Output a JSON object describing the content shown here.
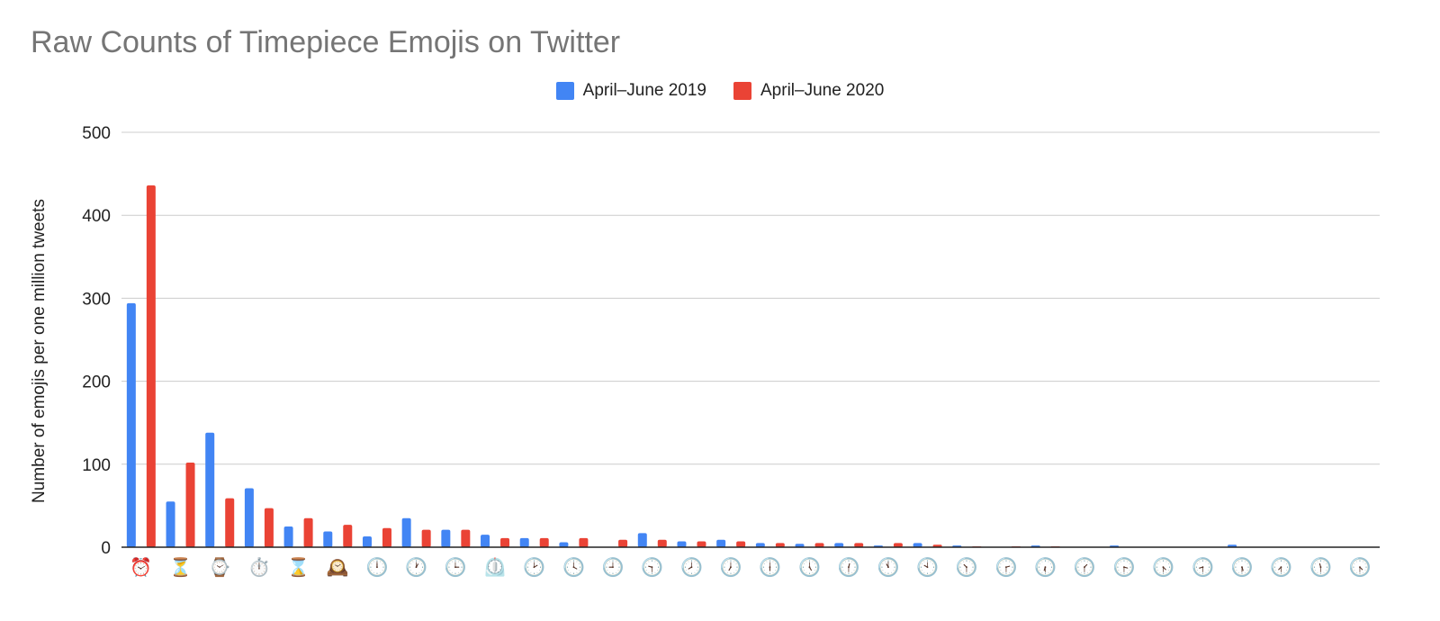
{
  "chart_data": {
    "type": "bar",
    "title": "Raw Counts of Timepiece Emojis on Twitter",
    "ylabel": "Number of emojis per one million tweets",
    "xlabel": "",
    "ylim": [
      0,
      500
    ],
    "yticks": [
      0,
      100,
      200,
      300,
      400,
      500
    ],
    "legend_position": "top-center",
    "grid": true,
    "categories": [
      "⏰",
      "⏳",
      "⌚",
      "⏱️",
      "⌛",
      "🕰️",
      "🕛",
      "🕐",
      "🕒",
      "⏲️",
      "🕑",
      "🕓",
      "🕘",
      "🕤",
      "🕗",
      "🕖",
      "🕕",
      "🕔",
      "🕧",
      "🕚",
      "🕙",
      "🕥",
      "🕝",
      "🕡",
      "🕜",
      "🕞",
      "🕟",
      "🕣",
      "🕠",
      "🕢",
      "🕦",
      "🕟"
    ],
    "series": [
      {
        "name": "April–June 2019",
        "color": "#4285F4",
        "values": [
          294,
          55,
          138,
          71,
          25,
          19,
          13,
          35,
          21,
          15,
          11,
          6,
          0,
          17,
          7,
          9,
          5,
          4,
          5,
          2,
          5,
          2,
          0,
          2,
          0,
          2,
          0,
          0,
          3,
          0,
          0,
          0
        ]
      },
      {
        "name": "April–June 2020",
        "color": "#EA4335",
        "values": [
          436,
          102,
          59,
          47,
          35,
          27,
          23,
          21,
          21,
          11,
          11,
          11,
          9,
          9,
          7,
          7,
          5,
          5,
          5,
          5,
          3,
          1,
          1,
          1,
          0,
          0,
          0,
          0,
          0,
          0,
          0,
          0
        ]
      }
    ]
  }
}
